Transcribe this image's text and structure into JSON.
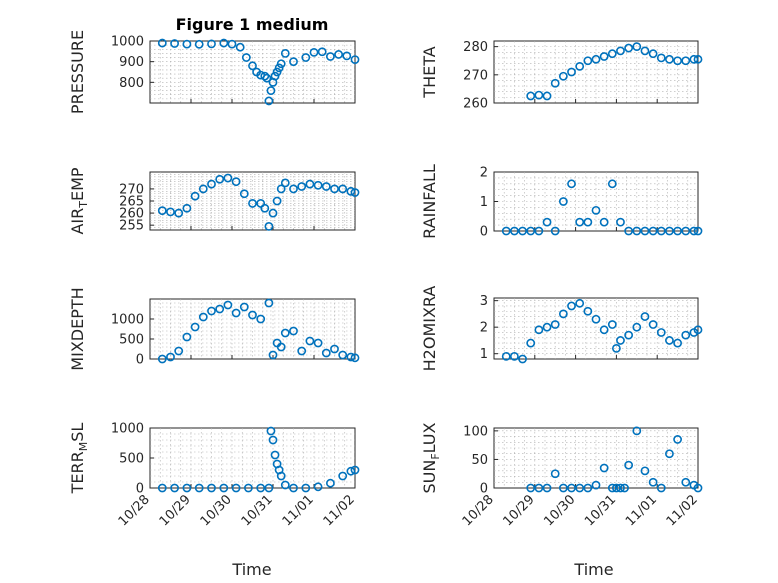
{
  "figure": {
    "title": "Figure 1 medium",
    "marker_color": "#0072BD",
    "x_tick_labels": [
      "10/28",
      "10/29",
      "10/30",
      "10/31",
      "11/01",
      "11/02"
    ],
    "x_label": "Time"
  },
  "chart_data": [
    {
      "type": "scatter",
      "title": "Figure 1 medium",
      "ylabel": "PRESSURE",
      "xlabel": "",
      "xlim": [
        0,
        5
      ],
      "ylim": [
        700,
        1000
      ],
      "yticks": [
        800,
        900,
        1000
      ],
      "grid": true,
      "x": [
        0.3,
        0.6,
        0.9,
        1.2,
        1.5,
        1.8,
        2.0,
        2.2,
        2.35,
        2.5,
        2.6,
        2.7,
        2.8,
        2.85,
        2.9,
        2.95,
        3.0,
        3.05,
        3.1,
        3.15,
        3.2,
        3.3,
        3.5,
        3.8,
        4.0,
        4.2,
        4.4,
        4.6,
        4.8,
        5.0
      ],
      "y": [
        990,
        988,
        985,
        984,
        986,
        990,
        985,
        970,
        920,
        880,
        850,
        835,
        830,
        820,
        710,
        760,
        800,
        830,
        850,
        870,
        890,
        940,
        900,
        920,
        945,
        948,
        925,
        935,
        928,
        910
      ]
    },
    {
      "type": "scatter",
      "title": "",
      "ylabel": "THETA",
      "xlabel": "",
      "xlim": [
        0,
        5
      ],
      "ylim": [
        260,
        282
      ],
      "yticks": [
        260,
        270,
        280
      ],
      "grid": true,
      "x": [
        0.9,
        1.1,
        1.3,
        1.5,
        1.7,
        1.9,
        2.1,
        2.3,
        2.5,
        2.7,
        2.9,
        3.1,
        3.3,
        3.5,
        3.7,
        3.9,
        4.1,
        4.3,
        4.5,
        4.7,
        4.9,
        5.0
      ],
      "y": [
        262.5,
        262.8,
        262.5,
        267,
        269.5,
        271,
        273,
        275,
        275.5,
        276.5,
        277.5,
        278.5,
        279.5,
        280,
        278.5,
        277.5,
        276,
        275.5,
        275,
        275,
        275.5,
        275.5
      ]
    },
    {
      "type": "scatter",
      "title": "",
      "ylabel": "AIR_TEMP",
      "xlabel": "",
      "xlim": [
        0,
        5
      ],
      "ylim": [
        253,
        277
      ],
      "yticks": [
        255,
        260,
        265,
        270
      ],
      "grid": true,
      "x": [
        0.3,
        0.5,
        0.7,
        0.9,
        1.1,
        1.3,
        1.5,
        1.7,
        1.9,
        2.1,
        2.3,
        2.5,
        2.7,
        2.8,
        2.9,
        3.0,
        3.1,
        3.2,
        3.3,
        3.5,
        3.7,
        3.9,
        4.1,
        4.3,
        4.5,
        4.7,
        4.9,
        5.0
      ],
      "y": [
        261,
        260.5,
        260,
        262,
        267,
        270,
        272,
        274,
        274.5,
        273,
        268,
        264,
        264,
        262,
        254.5,
        260,
        265,
        270,
        272.5,
        270,
        271,
        272,
        271.5,
        271,
        270,
        270,
        269,
        268.5
      ]
    },
    {
      "type": "scatter",
      "title": "",
      "ylabel": "RAINFALL",
      "xlabel": "",
      "xlim": [
        0,
        5
      ],
      "ylim": [
        0,
        2
      ],
      "yticks": [
        0,
        1,
        2
      ],
      "grid": true,
      "x": [
        0.3,
        0.5,
        0.7,
        0.9,
        1.1,
        1.3,
        1.5,
        1.7,
        1.9,
        2.1,
        2.3,
        2.5,
        2.7,
        2.9,
        3.1,
        3.3,
        3.5,
        3.7,
        3.9,
        4.1,
        4.3,
        4.5,
        4.7,
        4.9,
        5.0
      ],
      "y": [
        0,
        0,
        0,
        0,
        0,
        0.3,
        0,
        1.0,
        1.6,
        0.3,
        0.3,
        0.7,
        0.3,
        1.6,
        0.3,
        0,
        0,
        0,
        0,
        0,
        0,
        0,
        0,
        0,
        0
      ]
    },
    {
      "type": "scatter",
      "title": "",
      "ylabel": "MIXDEPTH",
      "xlabel": "",
      "xlim": [
        0,
        5
      ],
      "ylim": [
        0,
        1500
      ],
      "yticks": [
        0,
        500,
        1000
      ],
      "grid": true,
      "x": [
        0.3,
        0.5,
        0.7,
        0.9,
        1.1,
        1.3,
        1.5,
        1.7,
        1.9,
        2.1,
        2.3,
        2.5,
        2.7,
        2.9,
        3.0,
        3.1,
        3.2,
        3.3,
        3.5,
        3.7,
        3.9,
        4.1,
        4.3,
        4.5,
        4.7,
        4.9,
        5.0
      ],
      "y": [
        0,
        50,
        200,
        550,
        800,
        1050,
        1200,
        1250,
        1350,
        1150,
        1300,
        1100,
        1000,
        1400,
        100,
        400,
        300,
        650,
        700,
        200,
        450,
        400,
        150,
        250,
        100,
        50,
        30
      ]
    },
    {
      "type": "scatter",
      "title": "",
      "ylabel": "H2OMIXRA",
      "xlabel": "",
      "xlim": [
        0,
        5
      ],
      "ylim": [
        0.8,
        3.1
      ],
      "yticks": [
        1,
        2,
        3
      ],
      "grid": true,
      "x": [
        0.3,
        0.5,
        0.7,
        0.9,
        1.1,
        1.3,
        1.5,
        1.7,
        1.9,
        2.1,
        2.3,
        2.5,
        2.7,
        2.9,
        3.0,
        3.1,
        3.3,
        3.5,
        3.7,
        3.9,
        4.1,
        4.3,
        4.5,
        4.7,
        4.9,
        5.0
      ],
      "y": [
        0.9,
        0.9,
        0.8,
        1.4,
        1.9,
        2.0,
        2.1,
        2.5,
        2.8,
        2.9,
        2.6,
        2.3,
        1.9,
        2.1,
        1.2,
        1.5,
        1.7,
        2.0,
        2.4,
        2.1,
        1.8,
        1.5,
        1.4,
        1.7,
        1.8,
        1.9
      ]
    },
    {
      "type": "scatter",
      "title": "",
      "ylabel": "TERR_MSL",
      "xlabel": "Time",
      "xlim": [
        0,
        5
      ],
      "ylim": [
        0,
        1000
      ],
      "yticks": [
        0,
        500,
        1000
      ],
      "grid": true,
      "x": [
        0.3,
        0.6,
        0.9,
        1.2,
        1.5,
        1.8,
        2.1,
        2.4,
        2.7,
        2.9,
        2.95,
        3.0,
        3.05,
        3.1,
        3.15,
        3.2,
        3.3,
        3.5,
        3.8,
        4.1,
        4.4,
        4.7,
        4.9,
        5.0
      ],
      "y": [
        0,
        0,
        0,
        0,
        0,
        0,
        0,
        0,
        0,
        0,
        950,
        800,
        550,
        400,
        300,
        200,
        50,
        0,
        0,
        20,
        80,
        200,
        280,
        300
      ]
    },
    {
      "type": "scatter",
      "title": "",
      "ylabel": "SUN_FLUX",
      "xlabel": "Time",
      "xlim": [
        0,
        5
      ],
      "ylim": [
        0,
        105
      ],
      "yticks": [
        0,
        50,
        100
      ],
      "grid": true,
      "x": [
        0.9,
        1.1,
        1.3,
        1.5,
        1.7,
        1.9,
        2.1,
        2.3,
        2.5,
        2.7,
        2.9,
        3.0,
        3.1,
        3.2,
        3.3,
        3.5,
        3.7,
        3.9,
        4.1,
        4.3,
        4.5,
        4.7,
        4.9,
        5.0
      ],
      "y": [
        0,
        0,
        0,
        25,
        0,
        0,
        0,
        0,
        5,
        35,
        0,
        0,
        0,
        0,
        40,
        100,
        30,
        10,
        0,
        60,
        85,
        10,
        5,
        0
      ]
    }
  ]
}
